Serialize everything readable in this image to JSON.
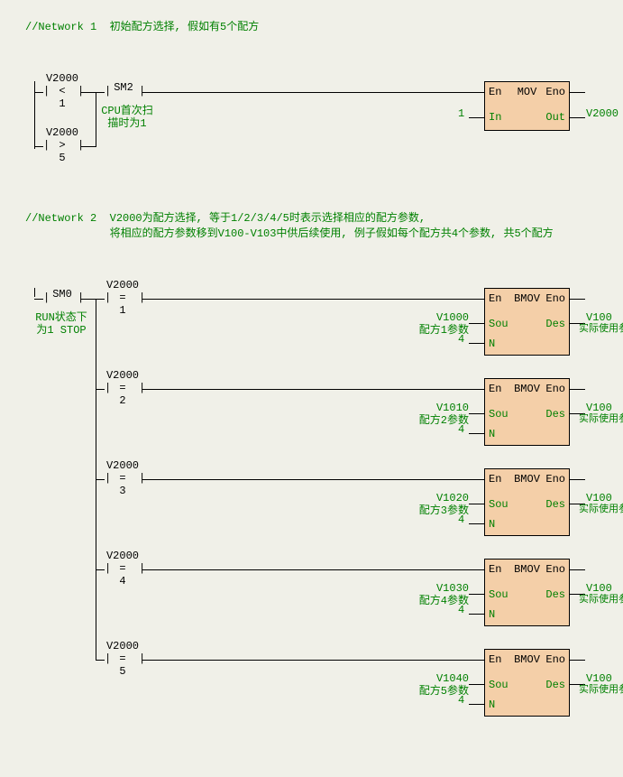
{
  "colors": {
    "background": "#f0f0e8",
    "box_fill": "#f4cfa8",
    "text_green": "#008000",
    "text_black": "#000000",
    "line": "#000000"
  },
  "network1": {
    "title_id": "//Network 1",
    "title_comment": "初始配方选择, 假如有5个配方",
    "contacts": {
      "lt": {
        "var": "V2000",
        "op": "<",
        "val": "1"
      },
      "gt": {
        "var": "V2000",
        "op": ">",
        "val": "5"
      },
      "sm2": {
        "var": "SM2",
        "comment_l1": "CPU首次扫",
        "comment_l2": "描时为1"
      }
    },
    "mov": {
      "name": "MOV",
      "en": "En",
      "eno": "Eno",
      "in_port": "In",
      "out_port": "Out",
      "in_val": "1",
      "out_val": "V2000"
    }
  },
  "network2": {
    "title_id": "//Network 2",
    "title_comment_l1": "V2000为配方选择, 等于1/2/3/4/5时表示选择相应的配方参数,",
    "title_comment_l2": "将相应的配方参数移到V100-V103中供后续使用, 例子假如每个配方共4个参数, 共5个配方",
    "sm0": {
      "var": "SM0",
      "comment_l1": "RUN状态下",
      "comment_l2": "为1 STOP"
    },
    "rungs": [
      {
        "cmp_var": "V2000",
        "cmp_op": "=",
        "cmp_val": "1",
        "sou_var": "V1000",
        "sou_desc": "配方1参数",
        "des_var": "V100",
        "des_desc": "实际使用参数",
        "n_val": "4"
      },
      {
        "cmp_var": "V2000",
        "cmp_op": "=",
        "cmp_val": "2",
        "sou_var": "V1010",
        "sou_desc": "配方2参数",
        "des_var": "V100",
        "des_desc": "实际使用参数",
        "n_val": "4"
      },
      {
        "cmp_var": "V2000",
        "cmp_op": "=",
        "cmp_val": "3",
        "sou_var": "V1020",
        "sou_desc": "配方3参数",
        "des_var": "V100",
        "des_desc": "实际使用参数",
        "n_val": "4"
      },
      {
        "cmp_var": "V2000",
        "cmp_op": "=",
        "cmp_val": "4",
        "sou_var": "V1030",
        "sou_desc": "配方4参数",
        "des_var": "V100",
        "des_desc": "实际使用参数",
        "n_val": "4"
      },
      {
        "cmp_var": "V2000",
        "cmp_op": "=",
        "cmp_val": "5",
        "sou_var": "V1040",
        "sou_desc": "配方5参数",
        "des_var": "V100",
        "des_desc": "实际使用参数",
        "n_val": "4"
      }
    ],
    "bmov": {
      "name": "BMOV",
      "en": "En",
      "eno": "Eno",
      "sou": "Sou",
      "des": "Des",
      "n": "N"
    }
  }
}
